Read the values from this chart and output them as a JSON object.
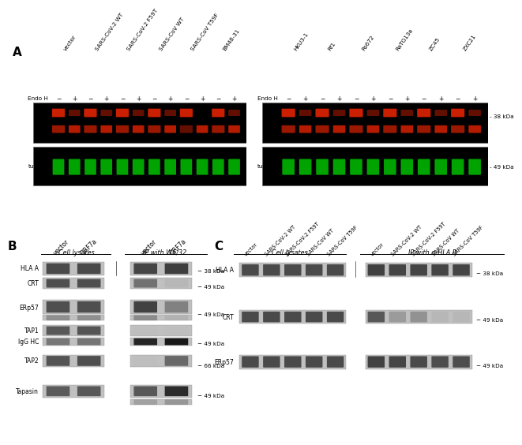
{
  "fig_width": 6.5,
  "fig_height": 5.16,
  "bg_color": "#ffffff",
  "panel_A": {
    "left_col_labels": [
      "vector",
      "SARS-CoV-2 WT",
      "SARS-CoV-2 F59T",
      "SARS-CoV WT",
      "SARS-CoV T59F",
      "BM48-31"
    ],
    "right_col_labels": [
      "HKU3-1",
      "Rf1",
      "Rs672",
      "RaTG13a",
      "ZC45",
      "ZXC21"
    ],
    "hla_color": "#dd2200",
    "tubulin_color": "#00bb00",
    "marker_38": "38 kDa",
    "marker_49": "49 kDa"
  },
  "panel_B": {
    "group1_label": "Cell lysates",
    "group2_label": "IP with W6/32",
    "col_labels": [
      "vector",
      "ORF7a",
      "vector",
      "ORF7a"
    ],
    "row_labels": [
      "HLA A",
      "CRT",
      "ERp57",
      "TAP1",
      "IgG HC",
      "TAP2",
      "Tapasin"
    ],
    "size_markers": [
      "38 kDa",
      "49 kDa",
      "49 kDa",
      "49 kDa",
      "66 kDa",
      "49 kDa"
    ]
  },
  "panel_C": {
    "group1_label": "Cell lysates",
    "group2_label": "IP with α-HLA B",
    "col_labels_1": [
      "vector",
      "SARS-CoV-2 WT",
      "SARS-CoV-2 F59T",
      "SARS-CoV WT",
      "SARS-CoV T59F"
    ],
    "col_labels_2": [
      "vector",
      "SARS-CoV-2 WT",
      "SARS-CoV-2 F59T",
      "SARS-CoV WT",
      "SARS-CoV T59F"
    ],
    "row_labels": [
      "HLA A",
      "CRT",
      "ERp57"
    ],
    "size_markers": [
      "38 kDa",
      "49 kDa",
      "49 kDa"
    ]
  },
  "gray_dark": "#303030",
  "gray_med": "#606060",
  "gray_light": "#a0a0a0"
}
